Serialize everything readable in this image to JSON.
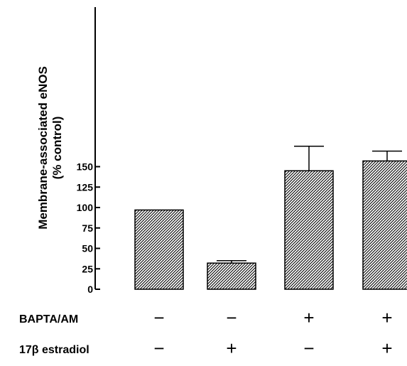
{
  "chart_data": {
    "type": "bar",
    "ylabel": [
      "Membrane-associated eNOS",
      "(% control)"
    ],
    "ylim": [
      0,
      175
    ],
    "yticks": [
      0,
      25,
      50,
      75,
      100,
      125,
      150
    ],
    "categories": [
      "1",
      "2",
      "3",
      "4"
    ],
    "values": [
      97,
      32,
      145,
      157
    ],
    "errors": [
      0,
      3,
      30,
      12
    ],
    "fill": "diagonal-hatch",
    "colors": {
      "bar_stroke": "#000000",
      "hatch": "#000000",
      "background": "#ffffff"
    },
    "conditions": [
      {
        "label": "BAPTA/AM",
        "signs": [
          "−",
          "−",
          "+",
          "+"
        ]
      },
      {
        "label": "17β estradiol",
        "signs": [
          "−",
          "+",
          "−",
          "+"
        ]
      }
    ]
  }
}
